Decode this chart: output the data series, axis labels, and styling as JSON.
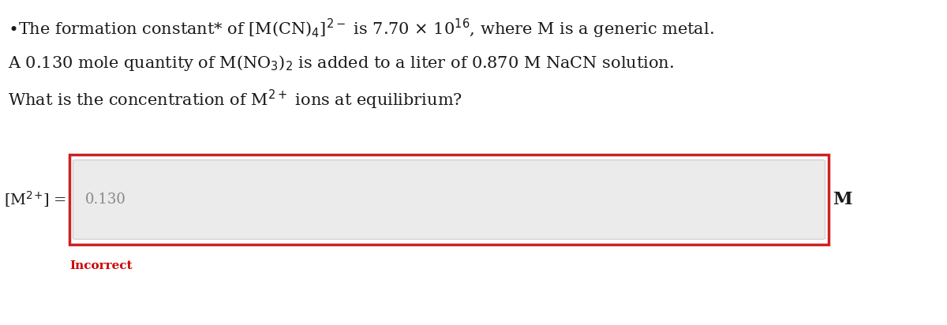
{
  "line1": "The formation constant* of [M(CN)$_4$]$^{2-}$ is 7.70 $\\times$ 10$^{16}$, where M is a generic metal.",
  "line2": "A 0.130 mole quantity of M(NO$_3$)$_2$ is added to a liter of 0.870 M NaCN solution.",
  "line3": "What is the concentration of M$^{2+}$ ions at equilibrium?",
  "label_left": "[M$^{2}$$^{+}$] =",
  "input_value": "0.130",
  "label_right": "M",
  "incorrect_text": "Incorrect",
  "bg_color": "#ffffff",
  "text_color": "#1a1a1a",
  "incorrect_color": "#cc0000",
  "input_bg": "#ebebeb",
  "box_border_color": "#cc2222",
  "input_text_color": "#888888",
  "fontsize_main": 15,
  "fontsize_label": 14,
  "fontsize_incorrect": 11
}
